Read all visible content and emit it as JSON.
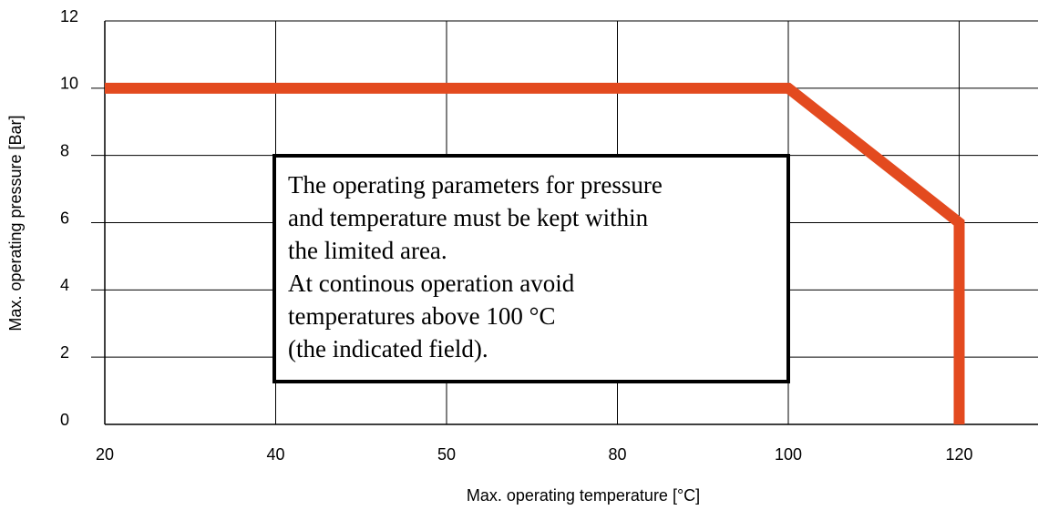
{
  "chart_data": {
    "type": "line",
    "x_label": "Max. operating temperature [°C]",
    "y_label": "Max. operating pressure [Bar]",
    "categories": [
      "20",
      "40",
      "50",
      "80",
      "100",
      "120"
    ],
    "series": [
      {
        "color": "#e34a1f",
        "x": [
          "20",
          "100",
          "120",
          "120"
        ],
        "values": [
          10,
          10,
          6,
          0
        ]
      }
    ],
    "ylim": [
      0,
      12
    ],
    "yticks": [
      0,
      2,
      4,
      6,
      8,
      10,
      12
    ],
    "grid": true,
    "annotation": [
      "The operating parameters for pressure",
      "and temperature must be kept within",
      "the limited area.",
      "At continous operation avoid",
      "temperatures above 100 °C",
      "(the indicated field)."
    ]
  }
}
